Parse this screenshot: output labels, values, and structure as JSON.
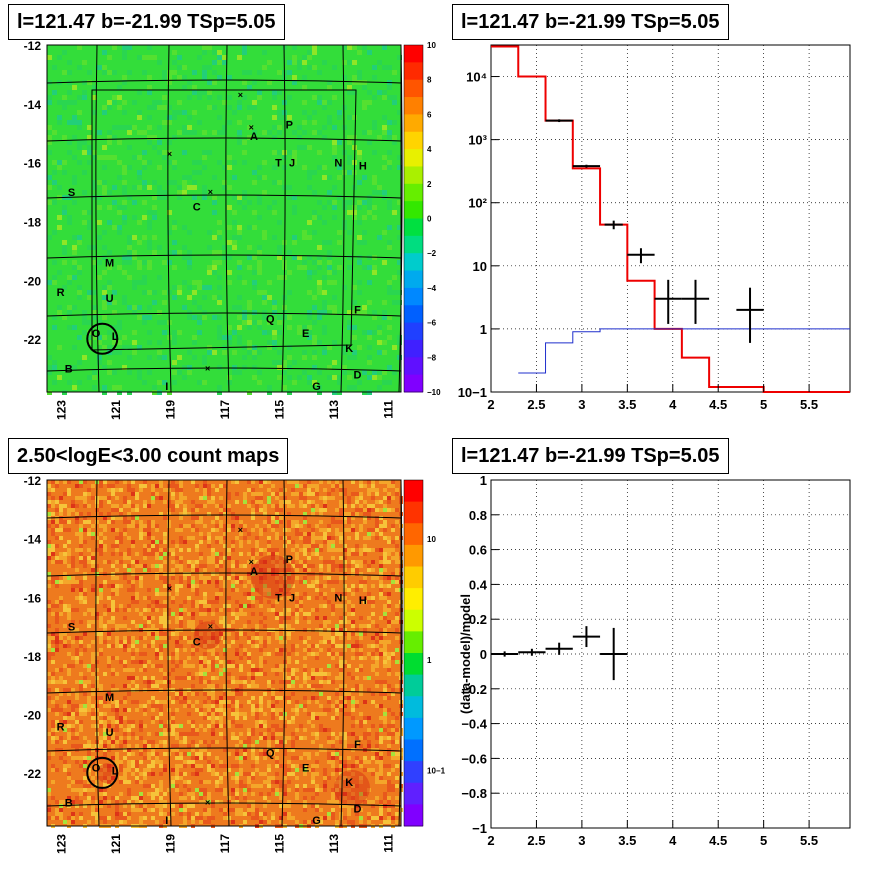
{
  "panels": {
    "tl_title": "l=121.47 b=-21.99 TSp=5.05",
    "tr_title": "l=121.47 b=-21.99 TSp=5.05",
    "bl_title": "2.50<logE<3.00 count maps",
    "br_title": "l=121.47 b=-21.99 TSp=5.05"
  },
  "colors": {
    "tl_background": "#33dd3a",
    "bl_background": "#ee7a1e",
    "model_line": "#ee0000",
    "background_line": "#1f2fcc",
    "data": "#000000"
  },
  "chart_data": [
    {
      "type": "heatmap",
      "name": "residual-map",
      "xlim": [
        123.5,
        110.5
      ],
      "ylim": [
        -23.8,
        -12.0
      ],
      "x_ticks": [
        "123",
        "121",
        "119",
        "117",
        "115",
        "113",
        "111"
      ],
      "y_ticks": [
        "-12",
        "-14",
        "-16",
        "-18",
        "-20",
        "-22"
      ],
      "colorbar": {
        "min": -10,
        "max": 10,
        "ticks": [
          "10",
          "8",
          "6",
          "4",
          "2",
          "0",
          "−2",
          "−4",
          "−6",
          "−8",
          "−10"
        ]
      },
      "sources": [
        {
          "label": "P",
          "x": 114.6,
          "y": -14.7
        },
        {
          "label": "A",
          "x": 115.9,
          "y": -15.1
        },
        {
          "label": "T",
          "x": 115.0,
          "y": -16.0
        },
        {
          "label": "J",
          "x": 114.5,
          "y": -16.0
        },
        {
          "label": "N",
          "x": 112.8,
          "y": -16.0
        },
        {
          "label": "H",
          "x": 111.9,
          "y": -16.1
        },
        {
          "label": "S",
          "x": 122.6,
          "y": -17.0
        },
        {
          "label": "C",
          "x": 118.0,
          "y": -17.5
        },
        {
          "label": "M",
          "x": 121.2,
          "y": -19.4
        },
        {
          "label": "R",
          "x": 123.0,
          "y": -20.4
        },
        {
          "label": "U",
          "x": 121.2,
          "y": -20.6
        },
        {
          "label": "F",
          "x": 112.1,
          "y": -21.0
        },
        {
          "label": "Q",
          "x": 115.3,
          "y": -21.3
        },
        {
          "label": "O",
          "x": 121.7,
          "y": -21.8
        },
        {
          "label": "L",
          "x": 121.0,
          "y": -21.9
        },
        {
          "label": "E",
          "x": 114.0,
          "y": -21.8
        },
        {
          "label": "K",
          "x": 112.4,
          "y": -22.3
        },
        {
          "label": "B",
          "x": 122.7,
          "y": -23.0
        },
        {
          "label": "D",
          "x": 112.1,
          "y": -23.2
        },
        {
          "label": "I",
          "x": 119.1,
          "y": -23.6
        },
        {
          "label": "G",
          "x": 113.6,
          "y": -23.6
        }
      ],
      "crosses": [
        {
          "x": 116.4,
          "y": -13.7
        },
        {
          "x": 116.0,
          "y": -14.8
        },
        {
          "x": 119.0,
          "y": -15.7
        },
        {
          "x": 117.5,
          "y": -17.0
        },
        {
          "x": 117.6,
          "y": -23.0
        }
      ],
      "circle": {
        "x": 121.47,
        "y": -21.99
      }
    },
    {
      "type": "line",
      "name": "spectrum",
      "xlim": [
        2,
        5.95
      ],
      "ylim_log10": [
        -1,
        4.5
      ],
      "y_scale": "log",
      "x_ticks": [
        "2",
        "2.5",
        "3",
        "3.5",
        "4",
        "4.5",
        "5",
        "5.5"
      ],
      "y_ticks": [
        "10−1",
        "1",
        "10",
        "10²",
        "10³",
        "10⁴"
      ],
      "series": [
        {
          "x": [
            2.0,
            2.3,
            2.6,
            2.9,
            3.2,
            3.5,
            3.8,
            4.1,
            4.4,
            4.7,
            5.0,
            5.95
          ],
          "values": [
            30000,
            10000,
            2000,
            350,
            45,
            5.8,
            1.0,
            0.35,
            0.12,
            0.12,
            0.1,
            0.1
          ]
        },
        {
          "x": [
            2.3,
            2.6,
            2.9,
            3.2,
            3.5,
            5.95
          ],
          "values": [
            0.2,
            0.6,
            0.9,
            1.0,
            1.0,
            1.0
          ]
        }
      ],
      "points": [
        {
          "x": 2.75,
          "y": 2000,
          "xerr": 0.15,
          "ylo": 1900,
          "yhi": 2100
        },
        {
          "x": 3.05,
          "y": 380,
          "xerr": 0.15,
          "ylo": 360,
          "yhi": 400
        },
        {
          "x": 3.35,
          "y": 45,
          "xerr": 0.1,
          "ylo": 38,
          "yhi": 52
        },
        {
          "x": 3.65,
          "y": 15,
          "xerr": 0.15,
          "ylo": 11,
          "yhi": 19
        },
        {
          "x": 3.95,
          "y": 3,
          "xerr": 0.15,
          "ylo": 1.2,
          "yhi": 6
        },
        {
          "x": 4.25,
          "y": 3,
          "xerr": 0.15,
          "ylo": 1.2,
          "yhi": 6
        },
        {
          "x": 4.85,
          "y": 2,
          "xerr": 0.15,
          "ylo": 0.6,
          "yhi": 4.5
        }
      ]
    },
    {
      "type": "heatmap",
      "name": "count-map",
      "xlim": [
        123.5,
        110.5
      ],
      "ylim": [
        -23.8,
        -12.0
      ],
      "x_ticks": [
        "123",
        "121",
        "119",
        "117",
        "115",
        "113",
        "111"
      ],
      "y_ticks": [
        "-12",
        "-14",
        "-16",
        "-18",
        "-20",
        "-22"
      ],
      "colorbar": {
        "log": true,
        "ticks": [
          "10",
          "1",
          "10−1"
        ]
      }
    },
    {
      "type": "scatter",
      "name": "residuals",
      "xlim": [
        2,
        5.95
      ],
      "ylim": [
        -1,
        1
      ],
      "ylabel": "(data-model)/model",
      "x_ticks": [
        "2",
        "2.5",
        "3",
        "3.5",
        "4",
        "4.5",
        "5",
        "5.5"
      ],
      "y_ticks": [
        "1",
        "0.8",
        "0.6",
        "0.4",
        "0.2",
        "0",
        "−0.2",
        "−0.4",
        "−0.6",
        "−0.8",
        "−1"
      ],
      "points": [
        {
          "x": 2.15,
          "y": 0.0,
          "xerr": 0.15,
          "yerr": 0.015
        },
        {
          "x": 2.45,
          "y": 0.01,
          "xerr": 0.15,
          "yerr": 0.02
        },
        {
          "x": 2.75,
          "y": 0.03,
          "xerr": 0.15,
          "yerr": 0.035
        },
        {
          "x": 3.05,
          "y": 0.1,
          "xerr": 0.15,
          "yerr": 0.06
        },
        {
          "x": 3.35,
          "y": 0.0,
          "xerr": 0.15,
          "yerr": 0.15
        }
      ]
    }
  ]
}
